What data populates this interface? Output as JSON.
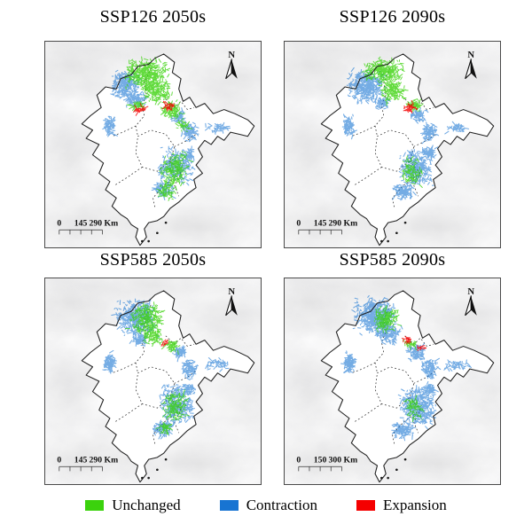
{
  "panels": [
    {
      "title": "SSP126 2050s",
      "north_label": "N",
      "scalebar_labels": [
        "0",
        "145",
        "290 Km"
      ],
      "clusters": [
        [
          "g",
          47,
          16,
          11,
          8,
          400
        ],
        [
          "g",
          52,
          24,
          7,
          6,
          160
        ],
        [
          "b",
          37,
          21,
          7,
          7,
          260
        ],
        [
          "b",
          42,
          28,
          5,
          4,
          90
        ],
        [
          "g",
          43,
          31,
          4,
          2,
          40
        ],
        [
          "r",
          44,
          33,
          2.5,
          1.5,
          28
        ],
        [
          "r",
          57,
          31,
          3,
          2,
          32
        ],
        [
          "g",
          59,
          33,
          5,
          4,
          120
        ],
        [
          "b",
          62,
          37,
          4,
          3,
          50
        ],
        [
          "g",
          64,
          41,
          3,
          3,
          40
        ],
        [
          "b",
          67,
          44,
          4,
          5,
          90
        ],
        [
          "b",
          80,
          42,
          6,
          2.5,
          40
        ],
        [
          "b",
          30,
          41,
          2.5,
          5,
          90
        ],
        [
          "b",
          61,
          60,
          8,
          9,
          260
        ],
        [
          "g",
          60,
          62,
          7,
          9,
          200
        ],
        [
          "b",
          55,
          72,
          5,
          4,
          90
        ],
        [
          "g",
          56,
          73,
          4,
          4,
          60
        ],
        [
          "b",
          67,
          55,
          3,
          3,
          40
        ]
      ]
    },
    {
      "title": "SSP126 2090s",
      "north_label": "N",
      "scalebar_labels": [
        "0",
        "145",
        "290 Km"
      ],
      "clusters": [
        [
          "g",
          46,
          14,
          10,
          6,
          300
        ],
        [
          "b",
          38,
          22,
          9,
          8,
          380
        ],
        [
          "g",
          50,
          24,
          6,
          6,
          150
        ],
        [
          "b",
          45,
          30,
          4,
          3,
          60
        ],
        [
          "r",
          58,
          32,
          3,
          2,
          36
        ],
        [
          "g",
          60,
          31,
          4,
          3,
          60
        ],
        [
          "b",
          62,
          36,
          4,
          3,
          60
        ],
        [
          "b",
          67,
          44,
          4,
          5,
          100
        ],
        [
          "b",
          80,
          42,
          6,
          2.5,
          45
        ],
        [
          "b",
          30,
          41,
          2.5,
          5,
          100
        ],
        [
          "b",
          61,
          61,
          8,
          10,
          320
        ],
        [
          "g",
          59,
          63,
          5,
          7,
          100
        ],
        [
          "b",
          55,
          73,
          5,
          4,
          110
        ],
        [
          "b",
          67,
          54,
          3,
          3,
          50
        ]
      ]
    },
    {
      "title": "SSP585 2050s",
      "north_label": "N",
      "scalebar_labels": [
        "0",
        "145",
        "290 Km"
      ],
      "clusters": [
        [
          "b",
          42,
          19,
          10,
          9,
          420
        ],
        [
          "g",
          47,
          20,
          8,
          8,
          260
        ],
        [
          "g",
          50,
          28,
          5,
          4,
          90
        ],
        [
          "b",
          44,
          30,
          4,
          3,
          70
        ],
        [
          "r",
          56,
          31,
          2,
          1.5,
          12
        ],
        [
          "g",
          59,
          33,
          4,
          3,
          60
        ],
        [
          "b",
          62,
          36,
          4,
          3,
          70
        ],
        [
          "b",
          67,
          44,
          4,
          5,
          100
        ],
        [
          "b",
          80,
          42,
          6,
          2.5,
          50
        ],
        [
          "b",
          30,
          41,
          2.5,
          5,
          110
        ],
        [
          "b",
          61,
          61,
          8,
          10,
          340
        ],
        [
          "g",
          60,
          62,
          6,
          8,
          150
        ],
        [
          "b",
          55,
          73,
          5,
          4,
          110
        ],
        [
          "g",
          56,
          73,
          3,
          3,
          40
        ],
        [
          "b",
          67,
          54,
          3,
          3,
          50
        ]
      ]
    },
    {
      "title": "SSP585 2090s",
      "north_label": "N",
      "scalebar_labels": [
        "0",
        "150",
        "300 Km"
      ],
      "clusters": [
        [
          "b",
          42,
          18,
          10,
          9,
          500
        ],
        [
          "g",
          47,
          20,
          6,
          6,
          170
        ],
        [
          "b",
          48,
          27,
          6,
          5,
          140
        ],
        [
          "r",
          57,
          30,
          2,
          1.5,
          20
        ],
        [
          "g",
          58,
          32,
          3,
          2,
          35
        ],
        [
          "b",
          61,
          36,
          4,
          4,
          100
        ],
        [
          "r",
          63,
          34,
          1.5,
          1.5,
          10
        ],
        [
          "b",
          67,
          44,
          4,
          5,
          110
        ],
        [
          "b",
          80,
          42,
          6,
          2.5,
          55
        ],
        [
          "b",
          30,
          41,
          2.5,
          5,
          110
        ],
        [
          "b",
          62,
          62,
          9,
          10,
          420
        ],
        [
          "g",
          60,
          63,
          4,
          6,
          60
        ],
        [
          "b",
          55,
          74,
          5,
          4,
          130
        ],
        [
          "b",
          67,
          54,
          3,
          3,
          55
        ]
      ]
    }
  ],
  "legend": {
    "items": [
      {
        "key": "g",
        "label": "Unchanged",
        "color": "#3bd20d"
      },
      {
        "key": "b",
        "label": "Contraction",
        "color": "#1874d2"
      },
      {
        "key": "r",
        "label": "Expansion",
        "color": "#f50000"
      }
    ]
  },
  "map_geometry": {
    "outline": [
      [
        55,
        6
      ],
      [
        51,
        8
      ],
      [
        48,
        11
      ],
      [
        43,
        12
      ],
      [
        40,
        16
      ],
      [
        35,
        18
      ],
      [
        33,
        23
      ],
      [
        28,
        22
      ],
      [
        24,
        26
      ],
      [
        26,
        32
      ],
      [
        21,
        36
      ],
      [
        17,
        40
      ],
      [
        22,
        43
      ],
      [
        19,
        47
      ],
      [
        25,
        50
      ],
      [
        22,
        55
      ],
      [
        27,
        59
      ],
      [
        25,
        64
      ],
      [
        30,
        68
      ],
      [
        28,
        72
      ],
      [
        33,
        76
      ],
      [
        31,
        80
      ],
      [
        35,
        84
      ],
      [
        38,
        86
      ],
      [
        40,
        89
      ],
      [
        43,
        91
      ],
      [
        42,
        95
      ],
      [
        44,
        99
      ],
      [
        47,
        95
      ],
      [
        46,
        91
      ],
      [
        48,
        88
      ],
      [
        52,
        87
      ],
      [
        55,
        85
      ],
      [
        58,
        81
      ],
      [
        62,
        78
      ],
      [
        66,
        74
      ],
      [
        70,
        71
      ],
      [
        69,
        67
      ],
      [
        73,
        64
      ],
      [
        70,
        60
      ],
      [
        73,
        56
      ],
      [
        71,
        52
      ],
      [
        74,
        48
      ],
      [
        77,
        50
      ],
      [
        80,
        46
      ],
      [
        83,
        48
      ],
      [
        86,
        44
      ],
      [
        90,
        45
      ],
      [
        94,
        46
      ],
      [
        97,
        41
      ],
      [
        94,
        38
      ],
      [
        88,
        35
      ],
      [
        83,
        33
      ],
      [
        78,
        35
      ],
      [
        74,
        30
      ],
      [
        70,
        32
      ],
      [
        67,
        27
      ],
      [
        64,
        29
      ],
      [
        62,
        23
      ],
      [
        63,
        18
      ],
      [
        59,
        15
      ],
      [
        60,
        10
      ]
    ],
    "inner_borders": [
      [
        [
          49,
          13
        ],
        [
          46,
          20
        ],
        [
          47,
          26
        ],
        [
          45,
          31
        ],
        [
          46,
          36
        ],
        [
          42,
          41
        ],
        [
          43,
          46
        ]
      ],
      [
        [
          43,
          46
        ],
        [
          49,
          43
        ],
        [
          56,
          45
        ],
        [
          60,
          51
        ],
        [
          58,
          58
        ],
        [
          52,
          63
        ],
        [
          45,
          61
        ],
        [
          42,
          54
        ],
        [
          43,
          46
        ]
      ],
      [
        [
          60,
          51
        ],
        [
          66,
          48
        ],
        [
          70,
          45
        ]
      ],
      [
        [
          58,
          58
        ],
        [
          63,
          64
        ],
        [
          60,
          70
        ],
        [
          62,
          75
        ]
      ],
      [
        [
          45,
          61
        ],
        [
          38,
          66
        ],
        [
          32,
          70
        ]
      ],
      [
        [
          42,
          41
        ],
        [
          36,
          44
        ],
        [
          31,
          46
        ]
      ],
      [
        [
          56,
          28
        ],
        [
          60,
          32
        ],
        [
          63,
          29
        ],
        [
          66,
          33
        ],
        [
          69,
          32
        ]
      ],
      [
        [
          63,
          64
        ],
        [
          55,
          70
        ],
        [
          50,
          76
        ],
        [
          51,
          81
        ]
      ]
    ],
    "islands": [
      [
        45,
        97
      ],
      [
        48,
        97
      ],
      [
        52,
        93
      ],
      [
        56,
        88
      ]
    ]
  }
}
